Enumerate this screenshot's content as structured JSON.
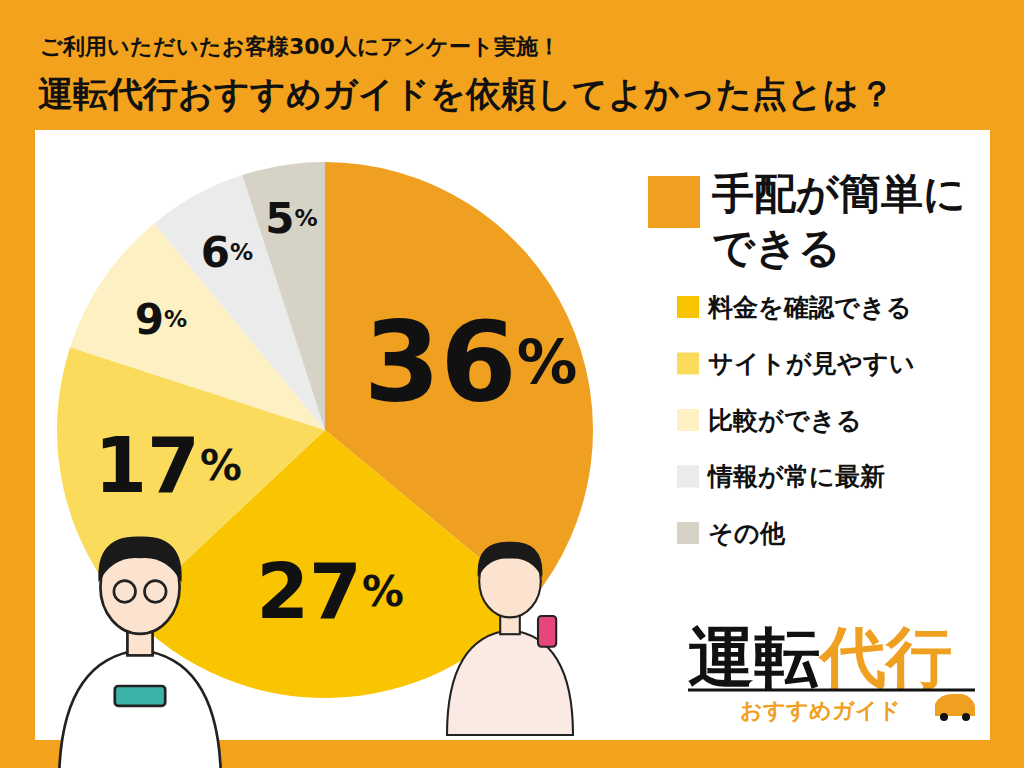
{
  "chart_data": {
    "type": "pie",
    "subtitle": "ご利用いただいたお客様300人にアンケート実施！",
    "title": "運転代行おすすめガイドを依頼してよかった点とは？",
    "categories": [
      "手配が簡単にできる",
      "料金を確認できる",
      "サイトが見やすい",
      "比較ができる",
      "情報が常に最新",
      "その他"
    ],
    "values": [
      36,
      27,
      17,
      9,
      6,
      5
    ],
    "value_labels": [
      "36%",
      "27%",
      "17%",
      "9%",
      "6%",
      "5%"
    ],
    "colors": [
      "#F0A020",
      "#F9C400",
      "#FBDB5C",
      "#FDF1C4",
      "#EBEBEB",
      "#D6D2C6"
    ],
    "data_labels": true,
    "legend": "right",
    "logo": {
      "name": "運転代行",
      "tagline": "おすすめガイド"
    }
  }
}
